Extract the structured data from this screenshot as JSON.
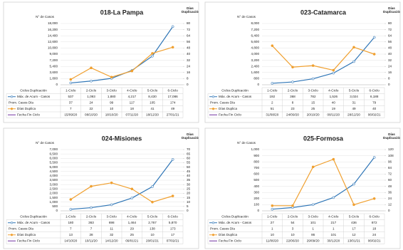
{
  "chart_data": [
    {
      "type": "line",
      "title": "018-La Pampa",
      "ylabel": "N° de Casos",
      "y2label": "Días Duplicación",
      "table_header": "Ciclos Duplicación",
      "categories": [
        "1-Ciclo",
        "2-Ciclo",
        "3-Ciclo",
        "4-Ciclo",
        "5-Ciclo",
        "6-Ciclo"
      ],
      "series": [
        {
          "name": "Máx. de Acum - Casos",
          "color": "#2e75b6",
          "values": [
            537,
            1093,
            1880,
            4217,
            8430,
            17086
          ],
          "value_labels": [
            "537",
            "1,093",
            "1,880",
            "4,217",
            "8,430",
            "17,086"
          ]
        },
        {
          "name": "Días Duplica",
          "color": "#f0a030",
          "axis": "y2",
          "values": [
            7,
            22,
            10,
            18,
            41,
            49
          ]
        }
      ],
      "table_rows": [
        {
          "name": "Prom. Casos Día",
          "values": [
            37,
            24,
            99,
            117,
            105,
            174
          ]
        },
        {
          "name": "Fecha Fin Ciclo",
          "color": "#7030a0",
          "values": [
            "15/09/20",
            "08/10/20",
            "18/10/20",
            "07/11/20",
            "18/12/20",
            "27/01/21"
          ]
        }
      ],
      "ylim": [
        0,
        18000
      ],
      "yticks": [
        0,
        {
          "value": 1800,
          "label": "1,800"
        },
        {
          "value": 3600,
          "label": "3,600"
        },
        {
          "value": 5400,
          "label": "5,400"
        },
        {
          "value": 7200,
          "label": "7,200"
        },
        {
          "value": 9000,
          "label": "9,000"
        },
        {
          "value": 10800,
          "label": "10,800"
        },
        {
          "value": 12600,
          "label": "12,600"
        },
        {
          "value": 14400,
          "label": "14,400"
        },
        {
          "value": 16200,
          "label": "16,200"
        },
        {
          "value": 18000,
          "label": "18,000"
        }
      ],
      "y2lim": [
        0,
        80
      ],
      "y2ticks": [
        0,
        8,
        16,
        24,
        32,
        40,
        48,
        56,
        64,
        72,
        80
      ],
      "grid": true
    },
    {
      "type": "line",
      "title": "023-Catamarca",
      "ylabel": "N° de Casos",
      "y2label": "Días Duplicación",
      "table_header": "Ciclos Duplicación",
      "categories": [
        "1-Ciclo",
        "2-Ciclo",
        "3-Ciclo",
        "4-Ciclo",
        "5-Ciclo",
        "6-Ciclo"
      ],
      "series": [
        {
          "name": "Máx. de Acum - Casos",
          "color": "#2e75b6",
          "values": [
            192,
            368,
            782,
            1526,
            3024,
            6188
          ],
          "value_labels": [
            "192",
            "368",
            "782",
            "1,526",
            "3,024",
            "6,188"
          ]
        },
        {
          "name": "Días Duplica",
          "color": "#f0a030",
          "axis": "y2",
          "values": [
            51,
            23,
            25,
            19,
            49,
            40
          ]
        }
      ],
      "table_rows": [
        {
          "name": "Prom. Casos Día",
          "values": [
            2,
            8,
            15,
            40,
            31,
            79
          ]
        },
        {
          "name": "Fecha Fin Ciclo",
          "color": "#7030a0",
          "values": [
            "31/08/20",
            "24/09/20",
            "20/10/20",
            "08/11/20",
            "28/12/20",
            "06/02/21"
          ]
        }
      ],
      "ylim": [
        0,
        8000
      ],
      "yticks": [
        0,
        800,
        {
          "value": 1600,
          "label": "1,600"
        },
        {
          "value": 2400,
          "label": "2,400"
        },
        {
          "value": 3200,
          "label": "3,200"
        },
        {
          "value": 4000,
          "label": "4,000"
        },
        {
          "value": 4800,
          "label": "4,800"
        },
        {
          "value": 5600,
          "label": "5,600"
        },
        {
          "value": 6400,
          "label": "6,400"
        },
        {
          "value": 7200,
          "label": "7,200"
        },
        {
          "value": 8000,
          "label": "8,000"
        }
      ],
      "y2lim": [
        0,
        80
      ],
      "y2ticks": [
        0,
        8,
        16,
        24,
        32,
        40,
        48,
        56,
        64,
        72,
        80
      ],
      "grid": true
    },
    {
      "type": "line",
      "title": "024-Misiones",
      "ylabel": "N° de Casos",
      "y2label": "Días Duplicación",
      "table_header": "Ciclos Duplicación",
      "categories": [
        "1-Ciclo",
        "2-Ciclo",
        "3-Ciclo",
        "4-Ciclo",
        "5-Ciclo",
        "6-Ciclo"
      ],
      "series": [
        {
          "name": "Máx. de Acum - Casos",
          "color": "#2e75b6",
          "values": [
            180,
            363,
            698,
            1464,
            2767,
            5870
          ],
          "value_labels": [
            "180",
            "363",
            "698",
            "1,464",
            "2,767",
            "5,870"
          ]
        },
        {
          "name": "Días Duplica",
          "color": "#f0a030",
          "axis": "y2",
          "values": [
            13,
            28,
            32,
            25,
            10,
            17
          ]
        }
      ],
      "table_rows": [
        {
          "name": "Prom. Casos Día",
          "values": [
            7,
            7,
            11,
            29,
            138,
            173
          ]
        },
        {
          "name": "Fecha Fin Ciclo",
          "color": "#7030a0",
          "values": [
            "14/10/20",
            "10/11/20",
            "14/12/20",
            "09/01/21",
            "20/01/21",
            "07/02/21"
          ]
        }
      ],
      "ylim": [
        0,
        7000
      ],
      "yticks": [
        0,
        500,
        {
          "value": 1000,
          "label": "1,000"
        },
        {
          "value": 1500,
          "label": "1,500"
        },
        {
          "value": 2000,
          "label": "2,000"
        },
        {
          "value": 2500,
          "label": "2,500"
        },
        {
          "value": 3000,
          "label": "3,000"
        },
        {
          "value": 3500,
          "label": "3,500"
        },
        {
          "value": 4000,
          "label": "4,000"
        },
        {
          "value": 4500,
          "label": "4,500"
        },
        {
          "value": 5000,
          "label": "5,000"
        },
        {
          "value": 5500,
          "label": "5,500"
        },
        {
          "value": 6000,
          "label": "6,000"
        },
        {
          "value": 6500,
          "label": "6,500"
        },
        {
          "value": 7000,
          "label": "7,000"
        }
      ],
      "y2lim": [
        0,
        70
      ],
      "y2ticks": [
        0,
        5,
        10,
        15,
        20,
        25,
        30,
        35,
        40,
        45,
        50,
        55,
        60,
        65,
        70
      ],
      "grid": true
    },
    {
      "type": "line",
      "title": "025-Formosa",
      "ylabel": "N° de Casos",
      "y2label": "Días Duplicación",
      "table_header": "Ciclos Duplicación",
      "categories": [
        "1-Ciclo",
        "2-Ciclo",
        "3-Ciclo",
        "4-Ciclo",
        "5-Ciclo",
        "6-Ciclo"
      ],
      "series": [
        {
          "name": "Máx. de Acum - Casos",
          "color": "#2e75b6",
          "values": [
            27,
            54,
            101,
            217,
            436,
            872
          ]
        },
        {
          "name": "Días Duplica",
          "color": "#f0a030",
          "axis": "y2",
          "values": [
            10,
            10,
            86,
            101,
            12,
            24
          ]
        }
      ],
      "table_rows": [
        {
          "name": "Prom. Casos Día",
          "values": [
            1,
            3,
            1,
            1,
            17,
            18
          ]
        },
        {
          "name": "Fecha Fin Ciclo",
          "color": "#7030a0",
          "values": [
            "11/06/20",
            "22/06/20",
            "29/09/20",
            "30/12/20",
            "13/01/21",
            "06/02/21"
          ]
        }
      ],
      "ylim": [
        0,
        1000
      ],
      "yticks": [
        0,
        100,
        200,
        300,
        400,
        500,
        600,
        700,
        800,
        900,
        {
          "value": 1000,
          "label": "1,000"
        }
      ],
      "y2lim": [
        0,
        120
      ],
      "y2ticks": [
        0,
        12,
        24,
        36,
        48,
        60,
        72,
        84,
        96,
        108,
        120
      ],
      "grid": true
    }
  ]
}
